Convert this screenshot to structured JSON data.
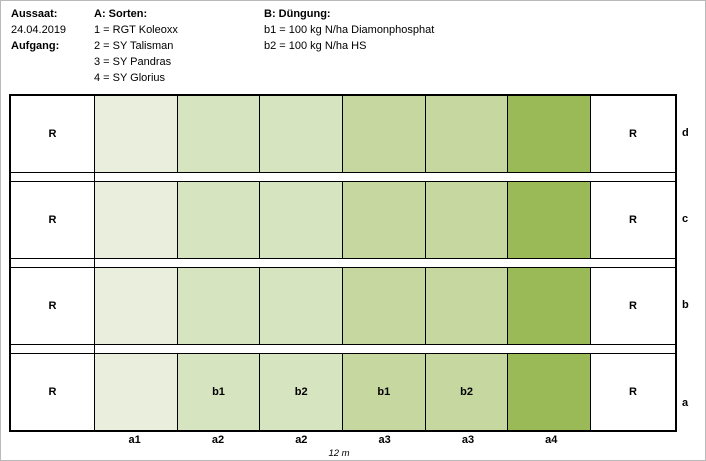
{
  "header": {
    "sowing_label": "Aussaat:",
    "sowing_date": "24.04.2019",
    "emergence_label": "Aufgang:",
    "varieties_title": "A: Sorten:",
    "varieties": [
      "1 = RGT Koleoxx",
      "2 = SY Talisman",
      "3 = SY Pandras",
      "4 = SY Glorius"
    ],
    "fertilization_title": "B: Düngung:",
    "fertilization": [
      "b1 = 100 kg N/ha Diamonphosphat",
      "b2 = 100 kg N/ha HS"
    ]
  },
  "plot": {
    "border_label": "R",
    "column_colors": [
      "#e9efdc",
      "#d7e4c0",
      "#d7e4c0",
      "#c6d7a0",
      "#c6d7a0",
      "#9aba58"
    ],
    "rows": [
      {
        "id": "d",
        "cells": [
          "",
          "",
          "",
          "",
          "",
          ""
        ]
      },
      {
        "id": "c",
        "cells": [
          "",
          "",
          "",
          "",
          "",
          ""
        ]
      },
      {
        "id": "b",
        "cells": [
          "",
          "",
          "",
          "",
          "",
          ""
        ]
      },
      {
        "id": "a",
        "cells": [
          "",
          "b1",
          "b2",
          "b1",
          "b2",
          ""
        ]
      }
    ],
    "column_labels": [
      "a1",
      "a2",
      "a2",
      "a3",
      "a3",
      "a4"
    ],
    "scale_label": "12 m"
  }
}
